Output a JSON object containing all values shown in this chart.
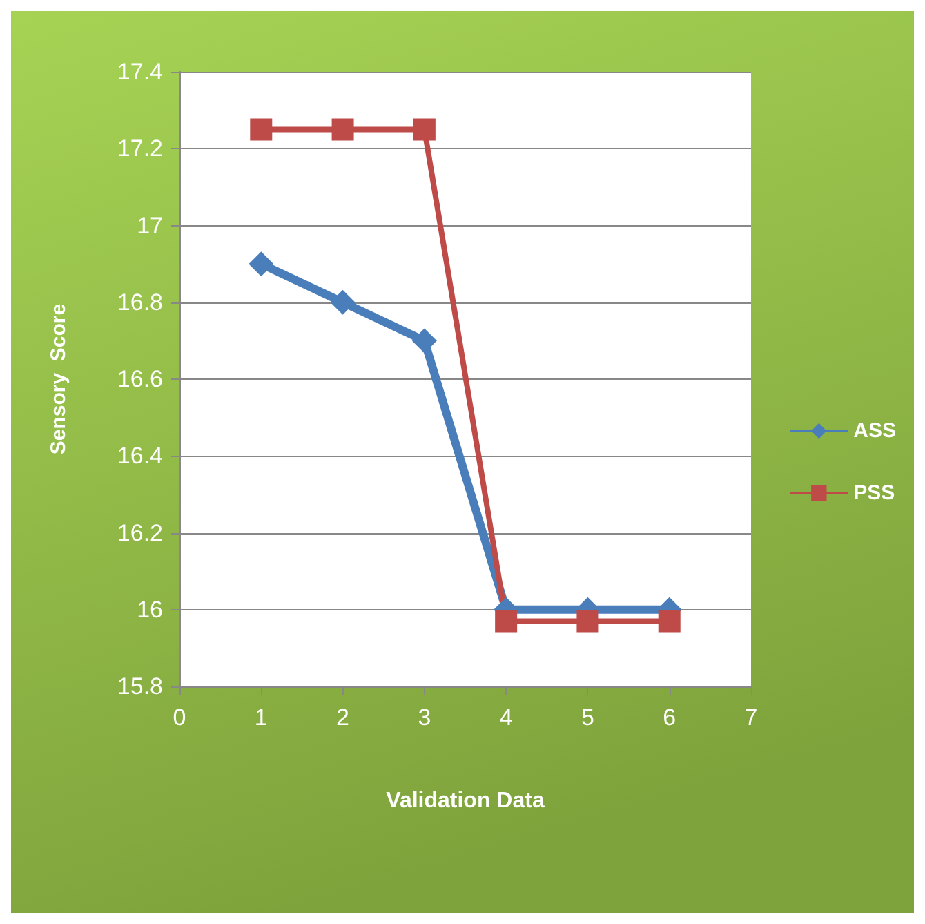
{
  "chart_data": {
    "type": "line",
    "xlabel": "Validation Data",
    "ylabel": "Sensory  Score",
    "x": [
      1,
      2,
      3,
      4,
      5,
      6
    ],
    "series": [
      {
        "name": "ASS",
        "color": "#4a7ebb",
        "values": [
          16.9,
          16.8,
          16.7,
          16,
          16,
          16
        ],
        "marker": "diamond"
      },
      {
        "name": "PSS",
        "color": "#be4b48",
        "values": [
          17.25,
          17.25,
          17.25,
          15.97,
          15.97,
          15.97
        ],
        "marker": "square"
      }
    ],
    "xlim": [
      0,
      7
    ],
    "xticks": [
      0,
      1,
      2,
      3,
      4,
      5,
      6,
      7
    ],
    "ylim": [
      15.8,
      17.4
    ],
    "yticks": [
      15.8,
      16,
      16.2,
      16.4,
      16.6,
      16.8,
      17,
      17.2,
      17.4
    ],
    "grid": "y",
    "legend": "right",
    "line_style": "solid"
  }
}
